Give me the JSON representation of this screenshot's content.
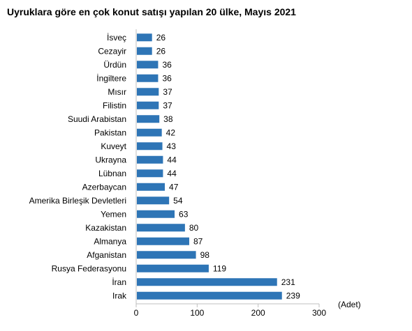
{
  "chart_data": {
    "type": "bar",
    "orientation": "horizontal",
    "title": "Uyruklara göre en çok konut satışı yapılan 20 ülke, Mayıs 2021",
    "unit_label": "(Adet)",
    "categories": [
      "İsveç",
      "Cezayir",
      "Ürdün",
      "İngiltere",
      "Mısır",
      "Filistin",
      "Suudi Arabistan",
      "Pakistan",
      "Kuveyt",
      "Ukrayna",
      "Lübnan",
      "Azerbaycan",
      "Amerika Birleşik Devletleri",
      "Yemen",
      "Kazakistan",
      "Almanya",
      "Afganistan",
      "Rusya Federasyonu",
      "İran",
      "Irak"
    ],
    "values": [
      26,
      26,
      36,
      36,
      37,
      37,
      38,
      42,
      43,
      44,
      44,
      47,
      54,
      63,
      80,
      87,
      98,
      119,
      231,
      239
    ],
    "x_ticks": [
      0,
      100,
      200,
      300
    ],
    "xlim": [
      0,
      300
    ],
    "data_labels": true,
    "grid": false,
    "legend": "none",
    "bar_color": "#2e75b6"
  }
}
